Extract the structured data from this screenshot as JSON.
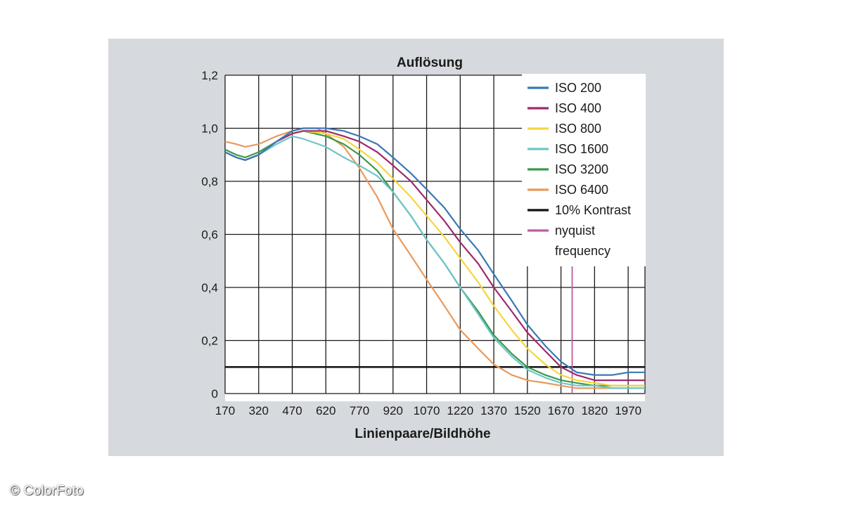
{
  "chart_data": {
    "type": "line",
    "title": "Auflösung",
    "xlabel": "Linienpaare/Bildhöhe",
    "ylabel": "",
    "xlim": [
      170,
      2045
    ],
    "ylim": [
      0,
      1.2
    ],
    "x_ticks": [
      170,
      320,
      470,
      620,
      770,
      920,
      1070,
      1220,
      1370,
      1520,
      1670,
      1820,
      1970
    ],
    "y_ticks": [
      0,
      0.2,
      0.4,
      0.6,
      0.8,
      1.0,
      1.2
    ],
    "y_tick_labels": [
      "0",
      "0,2",
      "0,4",
      "0,6",
      "0,8",
      "1,0",
      "1,2"
    ],
    "grid": true,
    "legend_position": "top-right",
    "series": [
      {
        "name": "ISO 200",
        "color": "#3a78b5",
        "points": [
          [
            170,
            0.91
          ],
          [
            220,
            0.89
          ],
          [
            260,
            0.88
          ],
          [
            320,
            0.9
          ],
          [
            400,
            0.95
          ],
          [
            470,
            0.99
          ],
          [
            520,
            1.0
          ],
          [
            620,
            1.0
          ],
          [
            700,
            0.99
          ],
          [
            770,
            0.97
          ],
          [
            850,
            0.94
          ],
          [
            920,
            0.89
          ],
          [
            1000,
            0.83
          ],
          [
            1070,
            0.77
          ],
          [
            1150,
            0.7
          ],
          [
            1220,
            0.62
          ],
          [
            1300,
            0.54
          ],
          [
            1370,
            0.45
          ],
          [
            1450,
            0.35
          ],
          [
            1520,
            0.26
          ],
          [
            1600,
            0.18
          ],
          [
            1670,
            0.12
          ],
          [
            1740,
            0.08
          ],
          [
            1820,
            0.07
          ],
          [
            1900,
            0.07
          ],
          [
            1970,
            0.08
          ],
          [
            2045,
            0.08
          ]
        ]
      },
      {
        "name": "ISO 400",
        "color": "#9e2a6b",
        "points": [
          [
            170,
            0.91
          ],
          [
            220,
            0.89
          ],
          [
            260,
            0.88
          ],
          [
            320,
            0.9
          ],
          [
            400,
            0.95
          ],
          [
            470,
            0.98
          ],
          [
            520,
            0.99
          ],
          [
            620,
            0.99
          ],
          [
            700,
            0.97
          ],
          [
            770,
            0.95
          ],
          [
            850,
            0.91
          ],
          [
            920,
            0.86
          ],
          [
            1000,
            0.8
          ],
          [
            1070,
            0.73
          ],
          [
            1150,
            0.65
          ],
          [
            1220,
            0.57
          ],
          [
            1300,
            0.49
          ],
          [
            1370,
            0.4
          ],
          [
            1450,
            0.31
          ],
          [
            1520,
            0.23
          ],
          [
            1600,
            0.16
          ],
          [
            1670,
            0.1
          ],
          [
            1740,
            0.07
          ],
          [
            1820,
            0.05
          ],
          [
            1900,
            0.05
          ],
          [
            1970,
            0.05
          ],
          [
            2045,
            0.05
          ]
        ]
      },
      {
        "name": "ISO 800",
        "color": "#f5d63c",
        "points": [
          [
            170,
            0.91
          ],
          [
            220,
            0.89
          ],
          [
            260,
            0.88
          ],
          [
            320,
            0.9
          ],
          [
            400,
            0.95
          ],
          [
            470,
            0.98
          ],
          [
            520,
            0.99
          ],
          [
            620,
            0.98
          ],
          [
            700,
            0.96
          ],
          [
            770,
            0.92
          ],
          [
            850,
            0.87
          ],
          [
            920,
            0.81
          ],
          [
            1000,
            0.74
          ],
          [
            1070,
            0.67
          ],
          [
            1150,
            0.59
          ],
          [
            1220,
            0.51
          ],
          [
            1300,
            0.42
          ],
          [
            1370,
            0.33
          ],
          [
            1450,
            0.24
          ],
          [
            1520,
            0.17
          ],
          [
            1600,
            0.11
          ],
          [
            1670,
            0.07
          ],
          [
            1740,
            0.05
          ],
          [
            1820,
            0.04
          ],
          [
            1900,
            0.03
          ],
          [
            1970,
            0.03
          ],
          [
            2045,
            0.03
          ]
        ]
      },
      {
        "name": "ISO 1600",
        "color": "#6fc5c8",
        "points": [
          [
            170,
            0.91
          ],
          [
            220,
            0.89
          ],
          [
            260,
            0.88
          ],
          [
            320,
            0.9
          ],
          [
            400,
            0.94
          ],
          [
            470,
            0.97
          ],
          [
            520,
            0.96
          ],
          [
            620,
            0.93
          ],
          [
            700,
            0.89
          ],
          [
            770,
            0.86
          ],
          [
            850,
            0.82
          ],
          [
            920,
            0.76
          ],
          [
            1000,
            0.67
          ],
          [
            1070,
            0.58
          ],
          [
            1150,
            0.49
          ],
          [
            1220,
            0.4
          ],
          [
            1300,
            0.3
          ],
          [
            1370,
            0.21
          ],
          [
            1450,
            0.14
          ],
          [
            1520,
            0.09
          ],
          [
            1600,
            0.06
          ],
          [
            1670,
            0.04
          ],
          [
            1740,
            0.03
          ],
          [
            1820,
            0.03
          ],
          [
            1900,
            0.02
          ],
          [
            1970,
            0.02
          ],
          [
            2045,
            0.02
          ]
        ]
      },
      {
        "name": "ISO 3200",
        "color": "#3a9a4a",
        "points": [
          [
            170,
            0.92
          ],
          [
            220,
            0.9
          ],
          [
            260,
            0.89
          ],
          [
            320,
            0.91
          ],
          [
            400,
            0.95
          ],
          [
            470,
            0.98
          ],
          [
            520,
            0.99
          ],
          [
            620,
            0.97
          ],
          [
            700,
            0.94
          ],
          [
            770,
            0.9
          ],
          [
            850,
            0.84
          ],
          [
            920,
            0.76
          ],
          [
            1000,
            0.67
          ],
          [
            1070,
            0.58
          ],
          [
            1150,
            0.49
          ],
          [
            1220,
            0.4
          ],
          [
            1300,
            0.31
          ],
          [
            1370,
            0.22
          ],
          [
            1450,
            0.15
          ],
          [
            1520,
            0.1
          ],
          [
            1600,
            0.07
          ],
          [
            1670,
            0.05
          ],
          [
            1740,
            0.04
          ],
          [
            1820,
            0.03
          ],
          [
            1900,
            0.03
          ],
          [
            1970,
            0.03
          ],
          [
            2045,
            0.03
          ]
        ]
      },
      {
        "name": "ISO 6400",
        "color": "#e89a5e",
        "points": [
          [
            170,
            0.95
          ],
          [
            220,
            0.94
          ],
          [
            260,
            0.93
          ],
          [
            320,
            0.94
          ],
          [
            400,
            0.97
          ],
          [
            470,
            0.99
          ],
          [
            520,
            1.0
          ],
          [
            580,
            1.0
          ],
          [
            620,
            0.98
          ],
          [
            700,
            0.93
          ],
          [
            770,
            0.85
          ],
          [
            850,
            0.74
          ],
          [
            920,
            0.62
          ],
          [
            1000,
            0.52
          ],
          [
            1070,
            0.43
          ],
          [
            1150,
            0.33
          ],
          [
            1220,
            0.24
          ],
          [
            1300,
            0.17
          ],
          [
            1370,
            0.11
          ],
          [
            1450,
            0.07
          ],
          [
            1520,
            0.05
          ],
          [
            1600,
            0.04
          ],
          [
            1670,
            0.03
          ],
          [
            1740,
            0.02
          ],
          [
            1820,
            0.02
          ],
          [
            1900,
            0.02
          ],
          [
            1970,
            0.02
          ],
          [
            2045,
            0.02
          ]
        ]
      }
    ],
    "reference_lines": [
      {
        "name": "10% Kontrast",
        "color": "#111111",
        "orientation": "horizontal",
        "value": 0.1
      },
      {
        "name": "nyquist frequency",
        "color": "#c05a9c",
        "orientation": "vertical",
        "value": 1720
      }
    ]
  },
  "legend": {
    "entries": [
      {
        "label": "ISO 200",
        "color": "#3a78b5"
      },
      {
        "label": "ISO 400",
        "color": "#9e2a6b"
      },
      {
        "label": "ISO 800",
        "color": "#f5d63c"
      },
      {
        "label": "ISO 1600",
        "color": "#6fc5c8"
      },
      {
        "label": "ISO 3200",
        "color": "#3a9a4a"
      },
      {
        "label": "ISO 6400",
        "color": "#e89a5e"
      },
      {
        "label": "10% Kontrast",
        "color": "#111111"
      },
      {
        "label": "nyquist",
        "label2": "frequency",
        "color": "#c05a9c"
      }
    ]
  },
  "watermark": {
    "text": "© ColorFoto"
  }
}
